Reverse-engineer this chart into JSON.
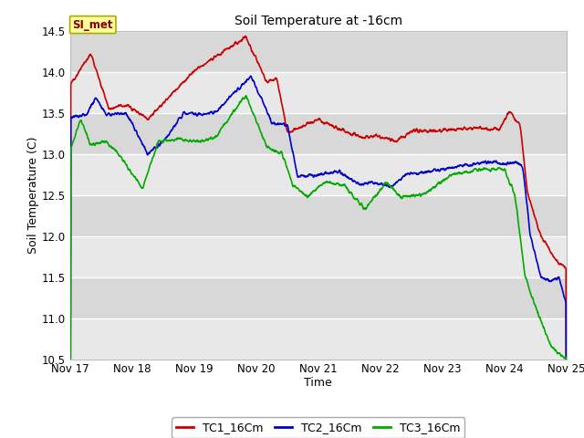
{
  "title": "Soil Temperature at -16cm",
  "xlabel": "Time",
  "ylabel": "Soil Temperature (C)",
  "ylim": [
    10.5,
    14.5
  ],
  "xlim": [
    0,
    192
  ],
  "x_tick_positions": [
    0,
    24,
    48,
    72,
    96,
    120,
    144,
    168,
    192
  ],
  "x_tick_labels": [
    "Nov 17",
    "Nov 18",
    "Nov 19",
    "Nov 20",
    "Nov 21",
    "Nov 22",
    "Nov 23",
    "Nov 24",
    "Nov 25"
  ],
  "y_tick_positions": [
    10.5,
    11.0,
    11.5,
    12.0,
    12.5,
    13.0,
    13.5,
    14.0,
    14.5
  ],
  "colors": {
    "TC1": "#cc0000",
    "TC2": "#0000cc",
    "TC3": "#00aa00",
    "fig_background": "#ffffff",
    "plot_background_light": "#e8e8e8",
    "plot_background_dark": "#d8d8d8",
    "grid": "#ffffff",
    "annotation_bg": "#ffff99",
    "annotation_border": "#aaaa00",
    "annotation_text": "#880000"
  },
  "legend_labels": [
    "TC1_16Cm",
    "TC2_16Cm",
    "TC3_16Cm"
  ],
  "annotation_text": "SI_met",
  "linewidth": 1.2
}
